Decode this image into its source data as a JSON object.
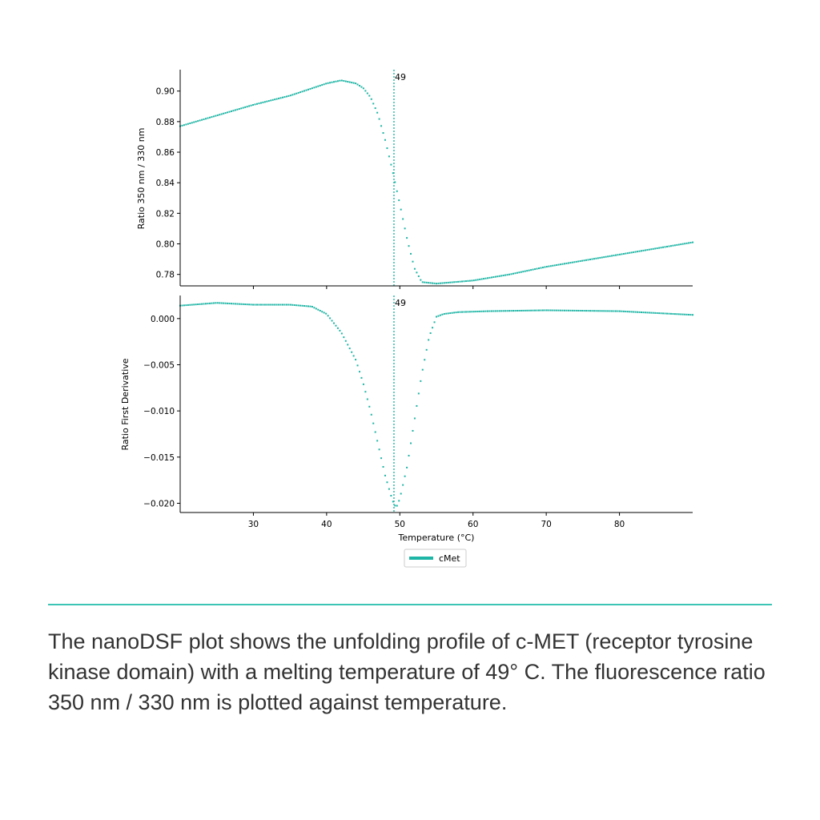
{
  "accent_color": "#1db5a5",
  "divider_color": "#3cc4b4",
  "caption": "The nanoDSF plot shows the unfolding profile of c-MET (receptor tyrosine kinase domain) with a melting temperature of 49° C. The fluorescence ratio 350 nm / 330 nm is plotted against temperature.",
  "chart_data": [
    {
      "type": "scatter",
      "title": "",
      "xlabel": "",
      "ylabel": "Ratio 350 nm / 330 nm",
      "xlim": [
        20,
        90
      ],
      "ylim": [
        0.7725,
        0.914
      ],
      "yticks": [
        0.78,
        0.8,
        0.82,
        0.84,
        0.86,
        0.88,
        0.9
      ],
      "ytick_labels": [
        "0.78",
        "0.80",
        "0.82",
        "0.84",
        "0.86",
        "0.88",
        "0.90"
      ],
      "xticks": [
        30,
        40,
        50,
        60,
        70,
        80
      ],
      "vline": {
        "x": 49.2,
        "label": "49"
      },
      "series": [
        {
          "name": "cMet",
          "color": "#1db5a5",
          "x": [
            20,
            25,
            30,
            35,
            40,
            42,
            44,
            45,
            46,
            47,
            48,
            49,
            50,
            51,
            52,
            53,
            55,
            60,
            65,
            70,
            75,
            80,
            85,
            90
          ],
          "y": [
            0.877,
            0.884,
            0.891,
            0.897,
            0.905,
            0.907,
            0.905,
            0.902,
            0.896,
            0.885,
            0.868,
            0.848,
            0.826,
            0.803,
            0.784,
            0.775,
            0.774,
            0.776,
            0.78,
            0.785,
            0.789,
            0.793,
            0.797,
            0.801
          ]
        }
      ]
    },
    {
      "type": "scatter",
      "title": "",
      "xlabel": "Temperature (°C)",
      "ylabel": "Ratio First Derivative",
      "xlim": [
        20,
        90
      ],
      "ylim": [
        -0.021,
        0.0025
      ],
      "yticks": [
        0.0,
        -0.005,
        -0.01,
        -0.015,
        -0.02
      ],
      "ytick_labels": [
        "0.000",
        "−0.005",
        "−0.010",
        "−0.015",
        "−0.020"
      ],
      "xticks": [
        30,
        40,
        50,
        60,
        70,
        80
      ],
      "xtick_labels": [
        "30",
        "40",
        "50",
        "60",
        "70",
        "80"
      ],
      "vline": {
        "x": 49.2,
        "label": "49"
      },
      "legend": {
        "location": "bottom-center",
        "entries": [
          "cMet"
        ]
      },
      "series": [
        {
          "name": "cMet",
          "color": "#1db5a5",
          "x": [
            20,
            25,
            30,
            35,
            38,
            40,
            42,
            44,
            45,
            46,
            47,
            48,
            49,
            49.5,
            50,
            51,
            52,
            53,
            54,
            55,
            56,
            58,
            62,
            70,
            80,
            90
          ],
          "y": [
            0.0014,
            0.0017,
            0.0015,
            0.0015,
            0.0013,
            0.0005,
            -0.0015,
            -0.0045,
            -0.007,
            -0.01,
            -0.0135,
            -0.017,
            -0.0197,
            -0.0205,
            -0.0195,
            -0.016,
            -0.011,
            -0.006,
            -0.002,
            0.0002,
            0.0005,
            0.0007,
            0.0008,
            0.0009,
            0.0008,
            0.0004
          ]
        }
      ]
    }
  ]
}
